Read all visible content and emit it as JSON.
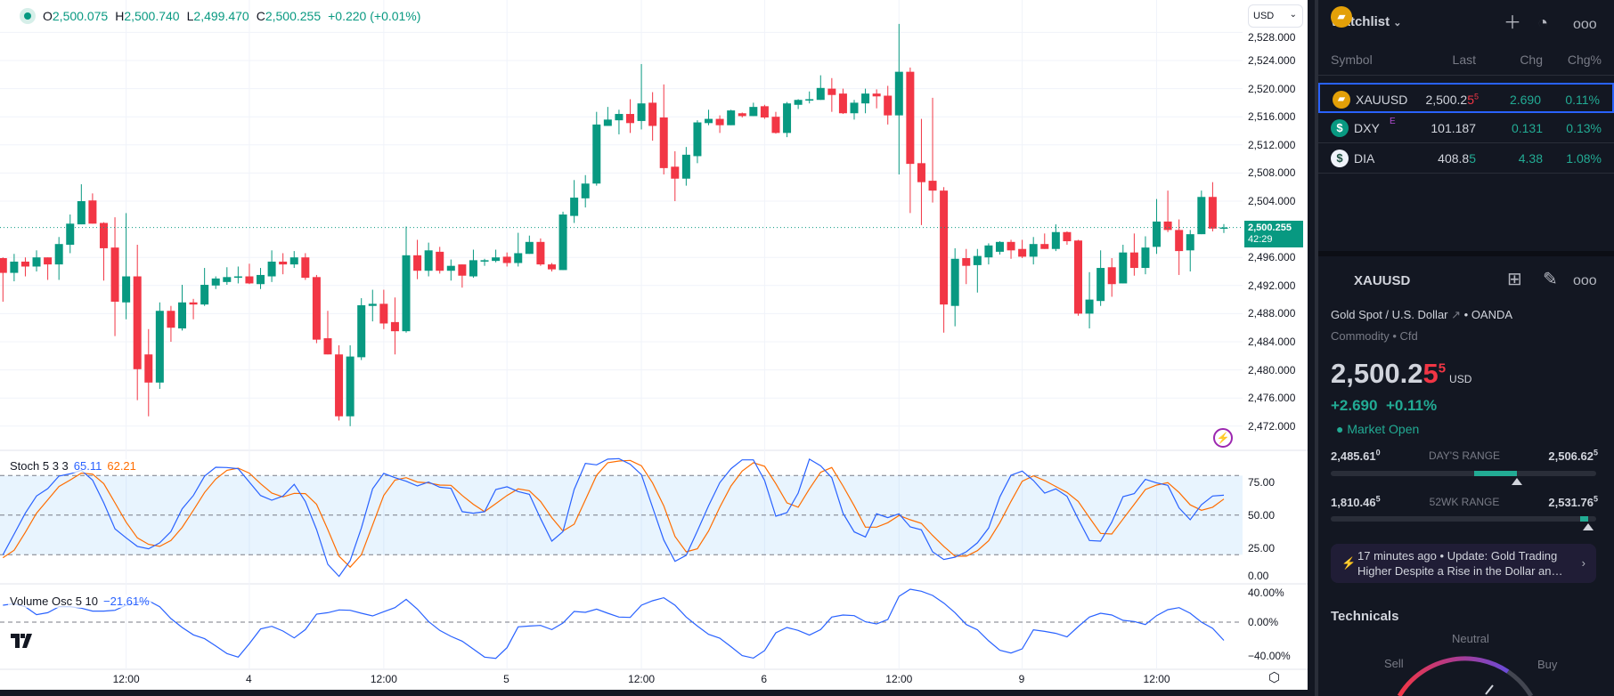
{
  "legend": {
    "open_label": "O",
    "open": "2,500.075",
    "high_label": "H",
    "high": "2,500.740",
    "low_label": "L",
    "low": "2,499.470",
    "close_label": "C",
    "close": "2,500.255",
    "change": "+0.220 (+0.01%)"
  },
  "currency_selector": "USD",
  "price_tag": {
    "price": "2,500.255",
    "countdown": "42:29"
  },
  "price_axis": [
    "2,528.000",
    "2,524.000",
    "2,520.000",
    "2,516.000",
    "2,512.000",
    "2,508.000",
    "2,504.000",
    "2,496.000",
    "2,492.000",
    "2,488.000",
    "2,484.000",
    "2,480.000",
    "2,476.000",
    "2,472.000"
  ],
  "time_axis": [
    "12:00",
    "4",
    "12:00",
    "5",
    "12:00",
    "6",
    "12:00",
    "9",
    "12:00"
  ],
  "stoch": {
    "name": "Stoch 5 3 3",
    "k_value": "65.11",
    "d_value": "62.21",
    "axis": [
      "75.00",
      "50.00",
      "25.00",
      "0.00"
    ],
    "bands": [
      80,
      50,
      20
    ],
    "k": [
      20.0,
      35.7,
      51.5,
      64.5,
      70.1,
      79.6,
      81.3,
      84.0,
      76.6,
      59.3,
      39.6,
      32.8,
      26.3,
      24.5,
      29.0,
      37.5,
      54.8,
      64.9,
      79.6,
      86.3,
      86.1,
      85.2,
      75.1,
      64.9,
      61.3,
      64.5,
      73.3,
      60.4,
      39.1,
      12.8,
      3.6,
      15.5,
      40.2,
      69.9,
      81.6,
      78.4,
      75.7,
      72.1,
      75.1,
      71.2,
      70.3,
      52.6,
      51.5,
      52.6,
      69.4,
      71.5,
      67.9,
      65.8,
      47.4,
      30.3,
      37.5,
      69.4,
      89.2,
      88.1,
      92.4,
      92.8,
      88.6,
      80.7,
      56.0,
      31.2,
      15.0,
      19.6,
      38.0,
      57.1,
      74.6,
      85.2,
      91.9,
      91.9,
      76.2,
      49.2,
      51.9,
      66.7,
      92.4,
      87.4,
      78.4,
      51.5,
      37.3,
      33.5,
      51.0,
      48.1,
      51.0,
      41.1,
      38.9,
      22.2,
      16.4,
      18.2,
      22.2,
      29.0,
      40.2,
      63.8,
      80.2,
      83.4,
      76.2,
      66.7,
      69.9,
      64.3,
      47.0,
      30.8,
      30.3,
      44.7,
      64.0,
      66.3,
      77.1,
      74.4,
      72.6,
      55.5,
      46.5,
      57.8,
      64.5,
      65.11
    ],
    "d": [
      17.8,
      23.4,
      36.9,
      51.5,
      61.6,
      71.7,
      76.6,
      81.8,
      81.1,
      73.9,
      59.3,
      44.7,
      32.8,
      27.9,
      26.3,
      30.8,
      40.7,
      53.7,
      67.2,
      77.3,
      84.0,
      85.6,
      81.8,
      73.9,
      66.7,
      63.8,
      66.5,
      66.3,
      58.2,
      39.1,
      18.9,
      10.6,
      20.0,
      42.5,
      64.9,
      76.6,
      78.4,
      75.1,
      74.4,
      72.8,
      72.6,
      64.9,
      58.2,
      52.6,
      58.7,
      64.9,
      69.9,
      68.5,
      60.4,
      48.1,
      38.0,
      43.1,
      61.6,
      80.2,
      89.7,
      91.0,
      91.5,
      87.4,
      74.4,
      57.1,
      33.9,
      22.2,
      24.5,
      38.0,
      56.0,
      72.1,
      83.4,
      89.7,
      87.0,
      73.9,
      59.3,
      56.0,
      69.9,
      82.5,
      86.1,
      72.1,
      57.1,
      40.9,
      40.9,
      44.3,
      49.7,
      46.5,
      43.8,
      34.6,
      26.3,
      18.9,
      18.9,
      23.1,
      30.6,
      44.3,
      60.4,
      75.7,
      79.8,
      76.2,
      71.7,
      67.2,
      60.4,
      48.1,
      36.2,
      35.7,
      47.0,
      58.2,
      69.4,
      72.8,
      74.6,
      67.2,
      57.8,
      53.7,
      56.0,
      62.21
    ]
  },
  "volume_osc": {
    "name": "Volume Osc 5 10",
    "value": "−21.61%",
    "axis": [
      "40.00%",
      "0.00%",
      "−40.00%"
    ],
    "values": [
      20.0,
      21.8,
      18.2,
      8.8,
      11.2,
      18.2,
      18.2,
      16.5,
      13.0,
      13.0,
      14.0,
      20.0,
      23.5,
      25.3,
      18.2,
      4.2,
      -6.3,
      -15.1,
      -19.6,
      -28.1,
      -37.2,
      -41.4,
      -25.6,
      -8.1,
      -4.9,
      -10.5,
      -18.6,
      -8.8,
      9.5,
      11.2,
      14.4,
      14.0,
      10.5,
      7.4,
      12.3,
      17.2,
      27.0,
      15.4,
      0.7,
      -9.8,
      -16.8,
      -22.5,
      -31.9,
      -41.4,
      -42.8,
      -30.2,
      -5.6,
      -4.6,
      -3.9,
      -8.8,
      -1.1,
      12.6,
      11.6,
      15.4,
      10.5,
      6.0,
      5.6,
      20.0,
      25.3,
      28.8,
      20.0,
      6.0,
      -4.6,
      -14.4,
      -18.9,
      -29.1,
      -39.6,
      -42.5,
      -33.7,
      -12.6,
      -6.3,
      -9.8,
      -15.4,
      -8.8,
      6.0,
      8.4,
      7.7,
      0.4,
      -2.1,
      3.2,
      30.5,
      38.9,
      36.5,
      31.6,
      22.5,
      11.2,
      -2.8,
      -9.1,
      -22.1,
      -33.3,
      -36.5,
      -31.6,
      -9.1,
      -10.9,
      -13.3,
      -17.5,
      -5.3,
      6.0,
      10.5,
      8.4,
      2.1,
      0.7,
      -2.8,
      7.7,
      14.7,
      17.2,
      10.5,
      0.0,
      -7.4,
      -21.61
    ]
  },
  "candles": [
    [
      2495.9,
      2496.0,
      2489.7,
      2493.8
    ],
    [
      2493.8,
      2496.5,
      2492.6,
      2495.4
    ],
    [
      2495.4,
      2496.0,
      2493.3,
      2494.7
    ],
    [
      2494.7,
      2497.0,
      2494.0,
      2496.0
    ],
    [
      2496.0,
      2496.0,
      2492.8,
      2495.0
    ],
    [
      2495.0,
      2498.9,
      2492.8,
      2497.9
    ],
    [
      2497.8,
      2502.1,
      2496.6,
      2500.8
    ],
    [
      2500.7,
      2506.4,
      2500.7,
      2504.0
    ],
    [
      2504.1,
      2505.1,
      2500.8,
      2500.8
    ],
    [
      2500.9,
      2501.0,
      2492.7,
      2497.3
    ],
    [
      2497.4,
      2501.7,
      2484.8,
      2489.7
    ],
    [
      2489.6,
      2502.3,
      2487.2,
      2493.3
    ],
    [
      2493.3,
      2497.8,
      2475.7,
      2480.1
    ],
    [
      2482.2,
      2485.8,
      2473.4,
      2478.2
    ],
    [
      2478.2,
      2489.6,
      2477.3,
      2488.4
    ],
    [
      2488.4,
      2489.1,
      2484.0,
      2486.0
    ],
    [
      2485.9,
      2492.1,
      2485.6,
      2489.6
    ],
    [
      2489.6,
      2490.1,
      2487.2,
      2489.3
    ],
    [
      2489.3,
      2494.5,
      2489.1,
      2492.1
    ],
    [
      2492.0,
      2493.3,
      2491.5,
      2493.0
    ],
    [
      2492.5,
      2494.6,
      2492.1,
      2493.2
    ],
    [
      2493.1,
      2494.7,
      2492.3,
      2493.3
    ],
    [
      2493.3,
      2495.1,
      2492.2,
      2492.3
    ],
    [
      2492.2,
      2494.5,
      2491.5,
      2493.5
    ],
    [
      2493.3,
      2497.0,
      2492.5,
      2495.4
    ],
    [
      2495.4,
      2496.6,
      2493.6,
      2495.0
    ],
    [
      2495.0,
      2496.9,
      2494.5,
      2496.0
    ],
    [
      2496.0,
      2496.6,
      2492.8,
      2493.1
    ],
    [
      2493.2,
      2493.5,
      2483.8,
      2484.3
    ],
    [
      2484.5,
      2488.4,
      2482.2,
      2482.2
    ],
    [
      2482.2,
      2483.5,
      2472.8,
      2473.4
    ],
    [
      2473.4,
      2483.5,
      2472.0,
      2481.9
    ],
    [
      2481.8,
      2490.2,
      2481.4,
      2489.2
    ],
    [
      2489.1,
      2491.4,
      2486.9,
      2489.4
    ],
    [
      2489.4,
      2491.4,
      2485.8,
      2486.6
    ],
    [
      2486.8,
      2490.3,
      2482.2,
      2485.5
    ],
    [
      2485.5,
      2500.4,
      2485.3,
      2496.3
    ],
    [
      2496.3,
      2498.5,
      2492.9,
      2494.1
    ],
    [
      2494.1,
      2498.1,
      2493.3,
      2497.0
    ],
    [
      2496.8,
      2497.5,
      2493.7,
      2494.1
    ],
    [
      2494.1,
      2495.7,
      2492.7,
      2494.8
    ],
    [
      2495.0,
      2495.0,
      2491.7,
      2493.4
    ],
    [
      2493.3,
      2497.1,
      2493.1,
      2495.6
    ],
    [
      2495.4,
      2495.8,
      2494.8,
      2495.6
    ],
    [
      2495.5,
      2497.1,
      2495.3,
      2496.0
    ],
    [
      2496.1,
      2496.7,
      2494.7,
      2495.2
    ],
    [
      2495.2,
      2499.5,
      2494.7,
      2496.6
    ],
    [
      2496.5,
      2499.1,
      2496.5,
      2498.2
    ],
    [
      2498.2,
      2498.7,
      2494.8,
      2495.0
    ],
    [
      2495.0,
      2495.2,
      2494.0,
      2494.3
    ],
    [
      2494.2,
      2502.5,
      2494.2,
      2502.1
    ],
    [
      2501.9,
      2507.0,
      2500.9,
      2504.5
    ],
    [
      2504.4,
      2507.7,
      2503.1,
      2506.5
    ],
    [
      2506.5,
      2516.7,
      2506.2,
      2514.9
    ],
    [
      2514.7,
      2517.4,
      2514.7,
      2515.6
    ],
    [
      2515.5,
      2517.0,
      2513.5,
      2516.4
    ],
    [
      2516.4,
      2518.5,
      2513.7,
      2515.1
    ],
    [
      2515.4,
      2523.5,
      2514.2,
      2517.9
    ],
    [
      2518.0,
      2519.5,
      2512.6,
      2514.7
    ],
    [
      2515.9,
      2520.6,
      2507.8,
      2508.7
    ],
    [
      2508.9,
      2511.1,
      2504.0,
      2507.2
    ],
    [
      2507.2,
      2511.7,
      2506.2,
      2510.6
    ],
    [
      2510.4,
      2515.5,
      2509.4,
      2515.2
    ],
    [
      2515.1,
      2517.0,
      2514.8,
      2515.7
    ],
    [
      2515.7,
      2516.2,
      2513.7,
      2514.8
    ],
    [
      2514.8,
      2517.0,
      2514.8,
      2516.9
    ],
    [
      2516.5,
      2516.6,
      2515.9,
      2516.1
    ],
    [
      2516.1,
      2518.0,
      2516.1,
      2517.4
    ],
    [
      2517.5,
      2517.7,
      2515.7,
      2515.9
    ],
    [
      2516.0,
      2516.7,
      2513.6,
      2513.7
    ],
    [
      2513.7,
      2518.1,
      2513.1,
      2517.9
    ],
    [
      2517.7,
      2518.5,
      2517.1,
      2518.4
    ],
    [
      2518.3,
      2519.6,
      2517.9,
      2518.5
    ],
    [
      2518.4,
      2521.9,
      2518.4,
      2520.1
    ],
    [
      2520.0,
      2521.5,
      2516.7,
      2519.1
    ],
    [
      2519.3,
      2520.0,
      2516.4,
      2516.5
    ],
    [
      2516.5,
      2518.4,
      2515.6,
      2518.0
    ],
    [
      2517.9,
      2520.0,
      2516.5,
      2519.3
    ],
    [
      2519.3,
      2519.9,
      2517.2,
      2518.9
    ],
    [
      2519.0,
      2520.4,
      2514.9,
      2516.2
    ],
    [
      2516.2,
      2529.2,
      2507.8,
      2522.4
    ],
    [
      2522.4,
      2523.0,
      2502.3,
      2509.3
    ],
    [
      2509.4,
      2515.7,
      2500.6,
      2506.7
    ],
    [
      2506.9,
      2518.7,
      2503.8,
      2505.5
    ],
    [
      2505.5,
      2506.0,
      2485.3,
      2489.3
    ],
    [
      2489.1,
      2497.3,
      2486.2,
      2495.8
    ],
    [
      2495.9,
      2497.2,
      2492.2,
      2494.8
    ],
    [
      2494.9,
      2497.2,
      2491.0,
      2496.2
    ],
    [
      2496.0,
      2498.0,
      2495.0,
      2497.7
    ],
    [
      2496.8,
      2498.3,
      2496.4,
      2498.2
    ],
    [
      2498.2,
      2498.5,
      2495.8,
      2497.0
    ],
    [
      2497.2,
      2498.5,
      2495.9,
      2496.1
    ],
    [
      2496.1,
      2498.9,
      2495.0,
      2497.9
    ],
    [
      2497.9,
      2499.4,
      2497.2,
      2497.2
    ],
    [
      2497.2,
      2500.7,
      2496.9,
      2499.6
    ],
    [
      2499.6,
      2499.7,
      2497.8,
      2498.3
    ],
    [
      2498.4,
      2498.5,
      2487.7,
      2488.0
    ],
    [
      2488.0,
      2493.9,
      2485.9,
      2490.0
    ],
    [
      2489.8,
      2497.0,
      2489.1,
      2494.5
    ],
    [
      2494.6,
      2495.9,
      2490.4,
      2492.2
    ],
    [
      2492.3,
      2497.8,
      2492.3,
      2496.7
    ],
    [
      2496.7,
      2499.4,
      2493.4,
      2494.5
    ],
    [
      2494.5,
      2499.0,
      2493.6,
      2497.4
    ],
    [
      2497.5,
      2504.3,
      2496.5,
      2501.1
    ],
    [
      2501.1,
      2505.5,
      2499.6,
      2499.9
    ],
    [
      2499.9,
      2501.4,
      2493.5,
      2496.9
    ],
    [
      2497.0,
      2499.9,
      2494.0,
      2499.3
    ],
    [
      2499.3,
      2505.5,
      2499.3,
      2504.6
    ],
    [
      2504.6,
      2506.7,
      2499.7,
      2500.1
    ],
    [
      2500.075,
      2500.74,
      2499.47,
      2500.255
    ]
  ],
  "colors": {
    "up": "#089981",
    "down": "#f23645",
    "stoch_k": "#2962ff",
    "stoch_d": "#ff6d00",
    "volume_osc": "#2962ff",
    "accent": "#2962ff"
  },
  "watchlist": {
    "title": "Watchlist",
    "columns": [
      "Symbol",
      "Last",
      "Chg",
      "Chg%"
    ],
    "rows": [
      {
        "symbol": "XAUUSD",
        "icon": "gold-bars-icon",
        "last_main": "2,500.2",
        "last_tick": "5",
        "last_sup": "5",
        "chg": "2.690",
        "chg_pct": "0.11%"
      },
      {
        "symbol": "DXY",
        "badge": "E",
        "icon": "dollar-icon",
        "last_main": "101.187",
        "chg": "0.131",
        "chg_pct": "0.13%"
      },
      {
        "symbol": "DIA",
        "icon": "dollar-icon",
        "last_main": "408.8",
        "last_tick": "5",
        "chg": "4.38",
        "chg_pct": "1.08%"
      }
    ]
  },
  "details": {
    "symbol": "XAUUSD",
    "description": "Gold Spot / U.S. Dollar",
    "exchange": "OANDA",
    "type": "Commodity",
    "subtype": "Cfd",
    "price_main": "2,500.2",
    "price_tick": "5",
    "price_sup": "5",
    "currency": "USD",
    "change": "+2.690",
    "change_pct": "+0.11%",
    "status": "Market Open",
    "days_range": {
      "label": "DAY'S RANGE",
      "low": "2,485.61",
      "low_sup": "0",
      "high": "2,506.62",
      "high_sup": "5",
      "fill_from": 0.54,
      "fill_to": 0.7,
      "marker": 0.7
    },
    "week52_range": {
      "label": "52WK RANGE",
      "low": "1,810.46",
      "low_sup": "5",
      "high": "2,531.76",
      "high_sup": "5",
      "fill_from": 0.94,
      "fill_to": 0.97,
      "marker": 0.97
    },
    "news": {
      "time": "17 minutes ago",
      "headline": "Update: Gold Trading Higher Despite a Rise in the Dollar an…"
    },
    "technicals": {
      "title": "Technicals",
      "neutral": "Neutral",
      "sell": "Sell",
      "buy": "Buy"
    }
  }
}
